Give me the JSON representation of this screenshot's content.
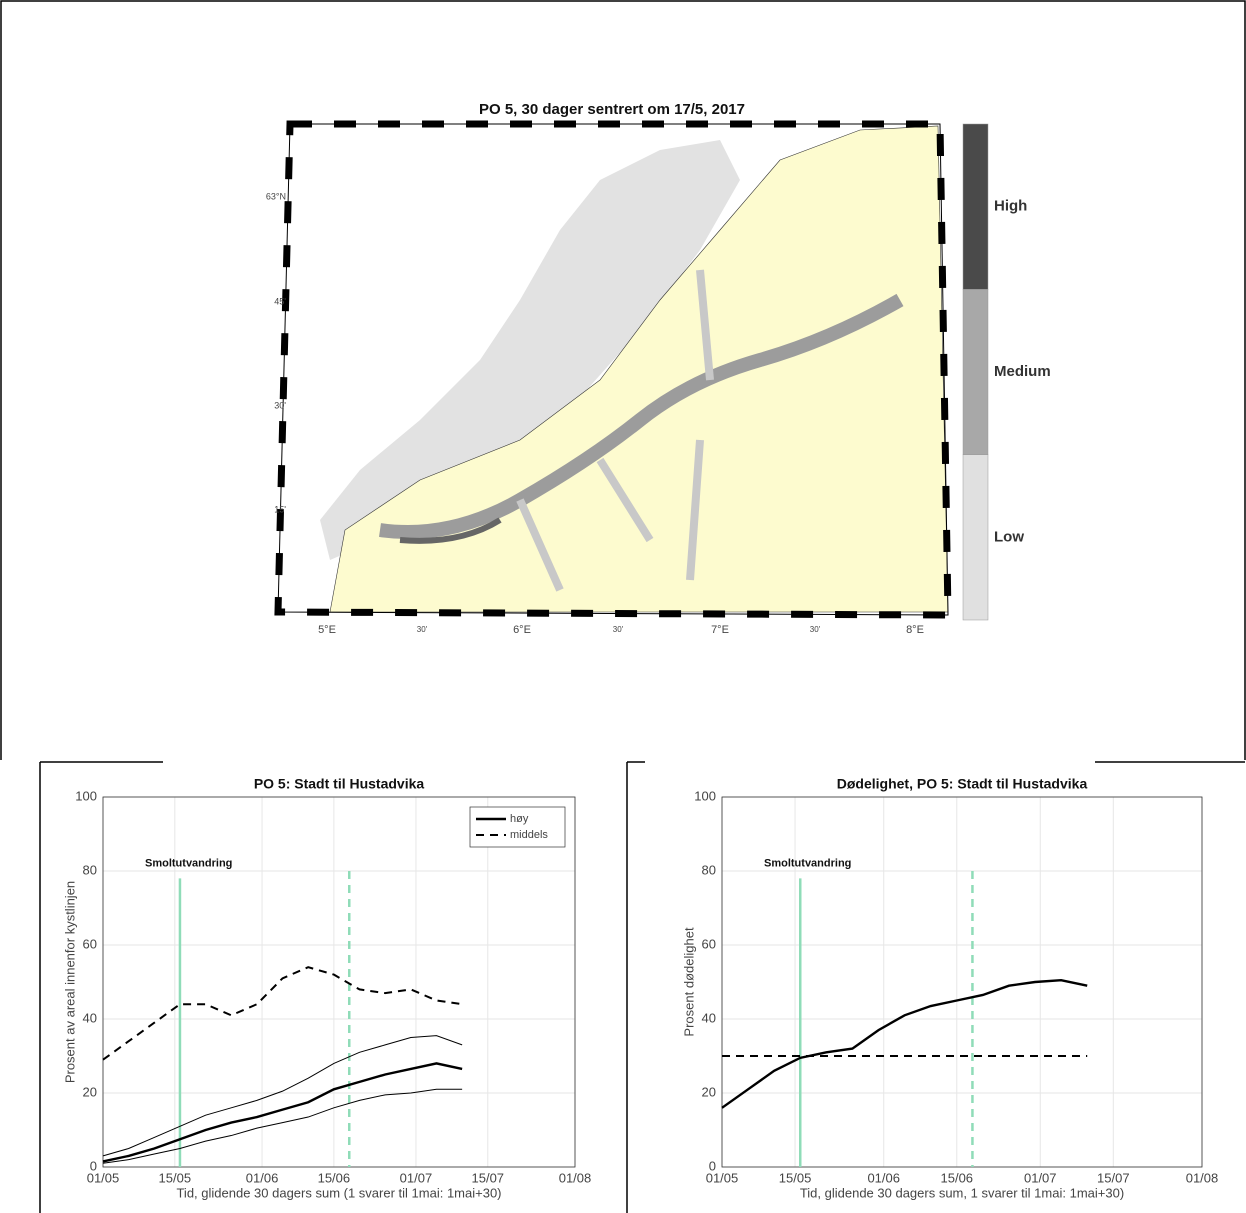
{
  "chart_data": [
    {
      "type": "map",
      "title": "PO 5, 30 dager sentrert om 17/5, 2017",
      "colorbar_labels": [
        "Low",
        "Medium",
        "High"
      ],
      "colorbar_colors": [
        "#e0e0e0",
        "#a8a8a8",
        "#4a4a4a"
      ],
      "lat_ticks": [
        "63°N",
        "45'",
        "30'",
        "15'"
      ],
      "lon_ticks": [
        "5°E",
        "30'",
        "6°E",
        "30'",
        "7°E",
        "30'",
        "8°E"
      ]
    },
    {
      "type": "line",
      "title": "PO 5: Stadt til Hustadvika",
      "xlabel": "Tid, glidende 30 dagers sum (1 svarer til 1mai: 1mai+30)",
      "ylabel": "Prosent av areal innenfor kystlinjen",
      "x": [
        0,
        5,
        10,
        15,
        20,
        25,
        30,
        35,
        40,
        45,
        50,
        55,
        60,
        65,
        70
      ],
      "series": [
        {
          "name": "høy",
          "color": "#000000",
          "width": 2.4,
          "dash": "none",
          "values": [
            1.5,
            3,
            5,
            7.5,
            10,
            12,
            13.5,
            15.5,
            17.5,
            21,
            23,
            25,
            26.5,
            28,
            26.5
          ]
        },
        {
          "name": "middels",
          "color": "#000000",
          "width": 2,
          "dash": "8 6",
          "values": [
            29,
            34,
            39,
            44,
            44,
            41,
            44,
            51,
            54,
            52,
            48,
            47,
            48,
            45,
            44
          ]
        },
        {
          "color": "#000000",
          "width": 1,
          "dash": "none",
          "values": [
            3,
            5,
            8,
            11,
            14,
            16,
            18,
            20.5,
            24,
            28,
            31,
            33,
            35,
            35.5,
            33
          ]
        },
        {
          "color": "#000000",
          "width": 1,
          "dash": "none",
          "values": [
            1,
            2,
            3.5,
            5,
            7,
            8.5,
            10.5,
            12,
            13.5,
            16,
            18,
            19.5,
            20,
            21,
            21
          ]
        }
      ],
      "vlines": [
        {
          "x": 15,
          "dash": "none"
        },
        {
          "x": 48,
          "dash": "8 6"
        }
      ],
      "vline_color": "#8fdcb8",
      "annotation": "Smoltutvandring",
      "xlim": [
        0,
        92
      ],
      "xticks": [
        {
          "value": 0,
          "label": "01/05"
        },
        {
          "value": 14,
          "label": "15/05"
        },
        {
          "value": 31,
          "label": "01/06"
        },
        {
          "value": 45,
          "label": "15/06"
        },
        {
          "value": 61,
          "label": "01/07"
        },
        {
          "value": 75,
          "label": "15/07"
        },
        {
          "value": 92,
          "label": "01/08"
        }
      ],
      "ylim": [
        0,
        100
      ],
      "yticks": [
        0,
        20,
        40,
        60,
        80,
        100
      ],
      "grid": true,
      "legend": "upper-right"
    },
    {
      "type": "line",
      "title": "Dødelighet, PO 5: Stadt til Hustadvika",
      "xlabel": "Tid, glidende 30 dagers sum, 1 svarer til 1mai: 1mai+30)",
      "ylabel": "Prosent dødelighet",
      "x": [
        0,
        5,
        10,
        15,
        20,
        25,
        30,
        35,
        40,
        45,
        50,
        55,
        60,
        65,
        70
      ],
      "series": [
        {
          "color": "#000000",
          "width": 2.4,
          "dash": "none",
          "values": [
            16,
            21,
            26,
            29.5,
            31,
            32,
            37,
            41,
            43.5,
            45,
            46.5,
            49,
            50,
            50.5,
            49
          ]
        },
        {
          "color": "#000000",
          "width": 2,
          "dash": "8 6",
          "values": [
            30,
            30,
            30,
            30,
            30,
            30,
            30,
            30,
            30,
            30,
            30,
            30,
            30,
            30,
            30
          ]
        }
      ],
      "vlines": [
        {
          "x": 15,
          "dash": "none"
        },
        {
          "x": 48,
          "dash": "8 6"
        }
      ],
      "vline_color": "#8fdcb8",
      "annotation": "Smoltutvandring",
      "xlim": [
        0,
        92
      ],
      "xticks": [
        {
          "value": 0,
          "label": "01/05"
        },
        {
          "value": 14,
          "label": "15/05"
        },
        {
          "value": 31,
          "label": "01/06"
        },
        {
          "value": 45,
          "label": "15/06"
        },
        {
          "value": 61,
          "label": "01/07"
        },
        {
          "value": 75,
          "label": "15/07"
        },
        {
          "value": 92,
          "label": "01/08"
        }
      ],
      "ylim": [
        0,
        100
      ],
      "yticks": [
        0,
        20,
        40,
        60,
        80,
        100
      ],
      "grid": true
    }
  ]
}
